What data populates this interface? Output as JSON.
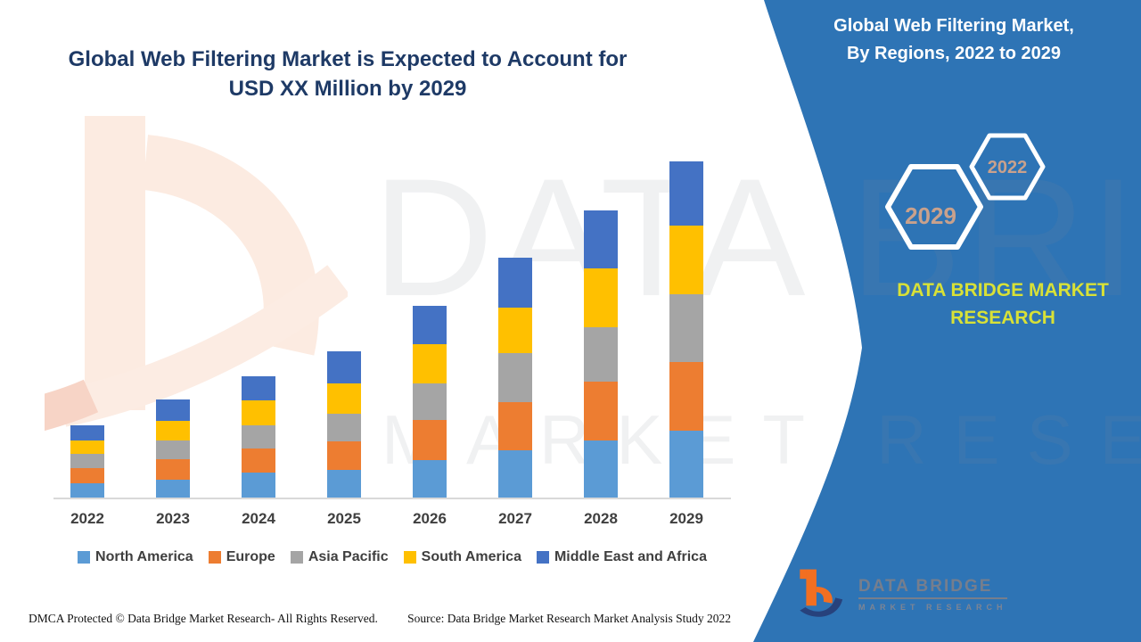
{
  "main_title": {
    "line1": "Global Web Filtering Market is Expected to Account for",
    "line2": "USD XX Million by 2029"
  },
  "side_panel": {
    "panel_color": "#2e74b5",
    "title_line1": "Global Web Filtering Market,",
    "title_line2": "By Regions, 2022 to 2029",
    "hexagon_badges": [
      {
        "label": "2022"
      },
      {
        "label": "2029"
      }
    ],
    "hexagon_label_color": "#c9a18c",
    "brand_line1": "DATA BRIDGE MARKET",
    "brand_line2": "RESEARCH",
    "brand_color": "#d8e137",
    "logo_title": "DATA BRIDGE",
    "logo_subtitle": "MARKET RESEARCH"
  },
  "watermark": {
    "line1": "DATA BRIDGE",
    "line2": "MARKET RESEARCH"
  },
  "footer": {
    "left": "DMCA Protected © Data Bridge Market Research- All Rights Reserved.",
    "source": "Source: Data Bridge Market Research Market Analysis Study 2022"
  },
  "chart_data": {
    "type": "bar",
    "stacked": true,
    "title": "Global Web Filtering Market is Expected to Account for USD XX Million by 2029",
    "categories": [
      "2022",
      "2023",
      "2024",
      "2025",
      "2026",
      "2027",
      "2028",
      "2029"
    ],
    "series": [
      {
        "name": "North America",
        "color": "#5b9bd5",
        "values": [
          16,
          20,
          28,
          31,
          42,
          53,
          64,
          75
        ]
      },
      {
        "name": "Europe",
        "color": "#ed7d31",
        "values": [
          17,
          23,
          27,
          32,
          45,
          54,
          66,
          77
        ]
      },
      {
        "name": "Asia Pacific",
        "color": "#a5a5a5",
        "values": [
          16,
          21,
          26,
          31,
          41,
          55,
          61,
          76
        ]
      },
      {
        "name": "South America",
        "color": "#ffc000",
        "values": [
          15,
          22,
          28,
          34,
          44,
          51,
          66,
          77
        ]
      },
      {
        "name": "Middle East and Africa",
        "color": "#4472c4",
        "values": [
          17,
          24,
          27,
          36,
          43,
          56,
          65,
          72
        ]
      }
    ],
    "stack_order_bottom_to_top": [
      "North America",
      "Europe",
      "Asia Pacific",
      "South America",
      "Middle East and Africa"
    ],
    "xlabel": "",
    "ylabel": "",
    "y_axis_shown": false,
    "values_unit": "relative heights; actual values not labeled (USD XX Million)",
    "legend_position": "bottom",
    "grid": false
  }
}
